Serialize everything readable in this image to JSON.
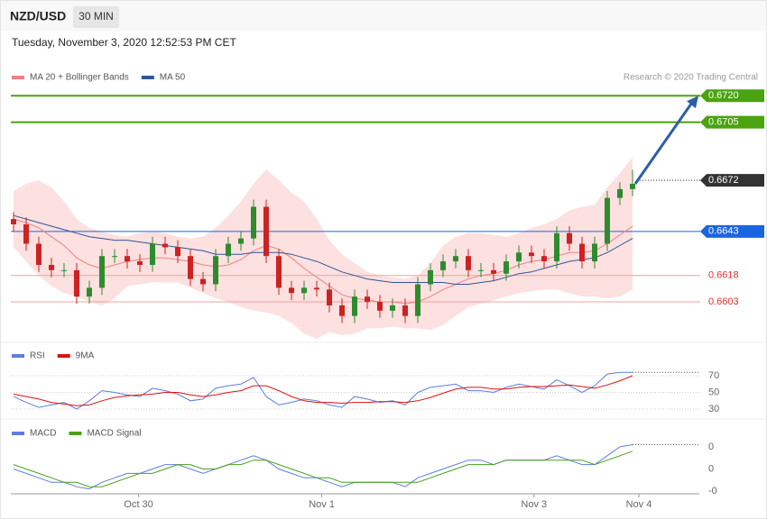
{
  "header": {
    "symbol": "NZD/USD",
    "interval": "30 MIN",
    "timestamp": "Tuesday, November 3, 2020 12:52:53 PM CET"
  },
  "chart_data": [
    {
      "type": "candlestick",
      "credit": "Research © 2020 Trading Central",
      "xlim": [
        0,
        54
      ],
      "ylim": [
        0.658,
        0.6736
      ],
      "up_color": "#2e8b2e",
      "down_color": "#cc2222",
      "open": [
        0.665,
        0.6647,
        0.6636,
        0.6624,
        0.6621,
        0.6621,
        0.6606,
        0.6611,
        0.6629,
        0.6629,
        0.6626,
        0.6624,
        0.6636,
        0.6634,
        0.6629,
        0.6616,
        0.6613,
        0.6629,
        0.6636,
        0.6639,
        0.6657,
        0.6629,
        0.6611,
        0.6608,
        0.6611,
        0.661,
        0.6601,
        0.6595,
        0.6606,
        0.6603,
        0.6598,
        0.6601,
        0.6595,
        0.6613,
        0.6621,
        0.6626,
        0.6629,
        0.6621,
        0.6621,
        0.6619,
        0.6626,
        0.6631,
        0.6629,
        0.6626,
        0.6642,
        0.6636,
        0.6626,
        0.6636,
        0.6662,
        0.6667
      ],
      "high": [
        0.6654,
        0.6651,
        0.664,
        0.6628,
        0.6625,
        0.6625,
        0.6615,
        0.6633,
        0.6633,
        0.6633,
        0.663,
        0.664,
        0.664,
        0.6638,
        0.6633,
        0.662,
        0.6633,
        0.664,
        0.6643,
        0.6661,
        0.6661,
        0.6633,
        0.6615,
        0.6615,
        0.6615,
        0.6614,
        0.6605,
        0.661,
        0.661,
        0.6607,
        0.6605,
        0.6605,
        0.6617,
        0.6625,
        0.663,
        0.6633,
        0.6633,
        0.6625,
        0.6625,
        0.663,
        0.6635,
        0.6635,
        0.6633,
        0.6646,
        0.6646,
        0.664,
        0.664,
        0.6666,
        0.6671,
        0.6678
      ],
      "low": [
        0.6643,
        0.6632,
        0.662,
        0.6617,
        0.6617,
        0.6602,
        0.6602,
        0.6607,
        0.6625,
        0.6622,
        0.662,
        0.662,
        0.663,
        0.6625,
        0.6612,
        0.6609,
        0.6609,
        0.6625,
        0.6632,
        0.6635,
        0.6625,
        0.6607,
        0.6604,
        0.6604,
        0.6606,
        0.6597,
        0.6591,
        0.6591,
        0.6599,
        0.6594,
        0.6594,
        0.6591,
        0.6591,
        0.6609,
        0.6617,
        0.6622,
        0.6617,
        0.6617,
        0.6615,
        0.6615,
        0.6622,
        0.6625,
        0.6622,
        0.6622,
        0.6632,
        0.6622,
        0.6622,
        0.6632,
        0.6658,
        0.6663
      ],
      "close": [
        0.6647,
        0.6636,
        0.6624,
        0.6621,
        0.6621,
        0.6606,
        0.6611,
        0.6629,
        0.6629,
        0.6626,
        0.6624,
        0.6636,
        0.6634,
        0.6629,
        0.6616,
        0.6613,
        0.6629,
        0.6636,
        0.6639,
        0.6657,
        0.6629,
        0.6611,
        0.6608,
        0.6611,
        0.661,
        0.6601,
        0.6595,
        0.6606,
        0.6603,
        0.6598,
        0.6601,
        0.6595,
        0.6613,
        0.6621,
        0.6626,
        0.6629,
        0.6621,
        0.6621,
        0.6619,
        0.6626,
        0.6631,
        0.6629,
        0.6626,
        0.6642,
        0.6636,
        0.6626,
        0.6636,
        0.6662,
        0.6667,
        0.667
      ],
      "series": [
        {
          "name": "MA 20 + Bollinger Bands",
          "color": "#f08080",
          "band_color": "#fde0e0",
          "values": [
            0.665,
            0.6648,
            0.6645,
            0.664,
            0.6635,
            0.6628,
            0.6624,
            0.6622,
            0.6624,
            0.6626,
            0.6627,
            0.6628,
            0.6628,
            0.6627,
            0.6626,
            0.6624,
            0.6623,
            0.6624,
            0.6627,
            0.6632,
            0.6635,
            0.6633,
            0.6628,
            0.6622,
            0.6617,
            0.6612,
            0.6607,
            0.6605,
            0.6604,
            0.6603,
            0.6603,
            0.6602,
            0.6603,
            0.6606,
            0.661,
            0.6613,
            0.6616,
            0.6618,
            0.6619,
            0.6621,
            0.6624,
            0.6626,
            0.6627,
            0.6629,
            0.6631,
            0.6631,
            0.6632,
            0.6636,
            0.6641,
            0.6646
          ],
          "upper": [
            0.6666,
            0.667,
            0.6672,
            0.6668,
            0.666,
            0.665,
            0.6645,
            0.6643,
            0.6641,
            0.664,
            0.6642,
            0.6643,
            0.6642,
            0.664,
            0.6639,
            0.664,
            0.6645,
            0.6652,
            0.666,
            0.667,
            0.6678,
            0.6672,
            0.6665,
            0.666,
            0.665,
            0.6638,
            0.663,
            0.6625,
            0.662,
            0.6618,
            0.6617,
            0.6616,
            0.6618,
            0.6625,
            0.6635,
            0.664,
            0.6642,
            0.6642,
            0.6641,
            0.664,
            0.6642,
            0.6645,
            0.6647,
            0.665,
            0.6655,
            0.6657,
            0.6658,
            0.6668,
            0.6676,
            0.6685
          ],
          "lower": [
            0.6634,
            0.6626,
            0.6618,
            0.6612,
            0.6608,
            0.6606,
            0.6603,
            0.6601,
            0.6605,
            0.6612,
            0.6613,
            0.6614,
            0.6614,
            0.6614,
            0.6611,
            0.6608,
            0.6605,
            0.6603,
            0.66,
            0.6598,
            0.6597,
            0.6595,
            0.6591,
            0.6585,
            0.6582,
            0.6586,
            0.6584,
            0.6585,
            0.6588,
            0.6588,
            0.6589,
            0.6588,
            0.6588,
            0.6587,
            0.659,
            0.6595,
            0.66,
            0.6602,
            0.6604,
            0.6606,
            0.6608,
            0.6609,
            0.661,
            0.661,
            0.6608,
            0.6606,
            0.6606,
            0.6605,
            0.6606,
            0.661
          ]
        },
        {
          "name": "MA 50",
          "color": "#2f5597",
          "values": [
            0.6652,
            0.665,
            0.6648,
            0.6646,
            0.6644,
            0.6642,
            0.664,
            0.6639,
            0.6638,
            0.6638,
            0.6637,
            0.6636,
            0.6635,
            0.6634,
            0.6633,
            0.6632,
            0.663,
            0.663,
            0.663,
            0.6631,
            0.6631,
            0.6631,
            0.663,
            0.6628,
            0.6626,
            0.6623,
            0.662,
            0.6618,
            0.6616,
            0.6615,
            0.6614,
            0.6614,
            0.6614,
            0.6614,
            0.6614,
            0.6613,
            0.6613,
            0.6614,
            0.6615,
            0.6617,
            0.6619,
            0.662,
            0.6622,
            0.6624,
            0.6626,
            0.6627,
            0.6628,
            0.6631,
            0.6635,
            0.6639
          ]
        }
      ],
      "levels": [
        {
          "value": 0.672,
          "label": "0.6720",
          "color": "#4aa30f",
          "style": "tag"
        },
        {
          "value": 0.6705,
          "color": "#4aa30f",
          "style": "tag"
        },
        {
          "value": 0.6672,
          "color": "#333333",
          "style": "dotted-tag"
        },
        {
          "value": 0.6643,
          "color": "#1a66e0",
          "style": "tag"
        },
        {
          "value": 0.6618,
          "color": "#e03030",
          "style": "text"
        },
        {
          "value": 0.6603,
          "color": "#e03030",
          "style": "text"
        }
      ]
    },
    {
      "type": "line",
      "xlim": [
        0,
        54
      ],
      "ylim": [
        20,
        80
      ],
      "yticks": [
        30,
        50,
        70
      ],
      "grid": true,
      "series": [
        {
          "name": "RSI",
          "color": "#5b7fde",
          "values": [
            45,
            38,
            32,
            35,
            38,
            30,
            40,
            52,
            50,
            47,
            45,
            55,
            52,
            48,
            40,
            42,
            55,
            58,
            60,
            68,
            45,
            35,
            38,
            42,
            40,
            35,
            32,
            45,
            42,
            38,
            40,
            35,
            50,
            56,
            58,
            60,
            52,
            52,
            50,
            56,
            60,
            57,
            54,
            65,
            58,
            50,
            58,
            72,
            74,
            74
          ]
        },
        {
          "name": "9MA",
          "color": "#dd1111",
          "values": [
            48,
            45,
            42,
            38,
            36,
            34,
            35,
            40,
            44,
            46,
            47,
            48,
            50,
            50,
            47,
            45,
            47,
            50,
            52,
            58,
            58,
            52,
            45,
            40,
            38,
            38,
            37,
            38,
            38,
            39,
            39,
            38,
            40,
            44,
            49,
            54,
            56,
            56,
            54,
            54,
            56,
            57,
            57,
            58,
            59,
            57,
            55,
            59,
            64,
            70
          ]
        }
      ]
    },
    {
      "type": "line",
      "xlim": [
        0,
        54
      ],
      "ylim": [
        -0.0006,
        0.0006
      ],
      "yticks": [
        {
          "value": 0.0005,
          "label": "0"
        },
        {
          "value": 0,
          "label": "0"
        },
        {
          "value": -0.0005,
          "label": "-0"
        }
      ],
      "xticks": [
        {
          "value": 9.9,
          "label": "Oct 30"
        },
        {
          "value": 24.4,
          "label": "Nov 1"
        },
        {
          "value": 41.2,
          "label": "Nov 3"
        },
        {
          "value": 49.5,
          "label": "Nov 4"
        }
      ],
      "series": [
        {
          "name": "MACD",
          "color": "#5b7fde",
          "values": [
            0.0,
            -0.0001,
            -0.0002,
            -0.0003,
            -0.0003,
            -0.0004,
            -0.00045,
            -0.0003,
            -0.0002,
            -0.0001,
            -0.0001,
            0.0,
            0.0001,
            0.0001,
            0.0,
            -0.0001,
            0.0,
            0.0001,
            0.0002,
            0.0003,
            0.0002,
            0.0,
            -0.0001,
            -0.0002,
            -0.0002,
            -0.0003,
            -0.0004,
            -0.0003,
            -0.0003,
            -0.0003,
            -0.0003,
            -0.0004,
            -0.0002,
            -0.0001,
            0.0,
            0.0001,
            0.0002,
            0.0002,
            0.0001,
            0.0002,
            0.0002,
            0.0002,
            0.0002,
            0.0003,
            0.0002,
            0.0001,
            0.0001,
            0.0003,
            0.0005,
            0.00055
          ]
        },
        {
          "name": "MACD Signal",
          "color": "#4aa01a",
          "values": [
            0.0001,
            0.0,
            -0.0001,
            -0.0002,
            -0.0003,
            -0.0003,
            -0.0004,
            -0.0004,
            -0.0003,
            -0.0002,
            -0.0001,
            -0.0001,
            0.0,
            0.0001,
            0.0001,
            0.0,
            0.0,
            0.0001,
            0.0001,
            0.0002,
            0.0002,
            0.0001,
            0.0,
            -0.0001,
            -0.0002,
            -0.0002,
            -0.0003,
            -0.0003,
            -0.0003,
            -0.0003,
            -0.0003,
            -0.0003,
            -0.0003,
            -0.0002,
            -0.0001,
            0.0,
            0.0001,
            0.0001,
            0.0001,
            0.0002,
            0.0002,
            0.0002,
            0.0002,
            0.0002,
            0.0002,
            0.0002,
            0.0001,
            0.0002,
            0.0003,
            0.0004
          ]
        }
      ]
    }
  ]
}
